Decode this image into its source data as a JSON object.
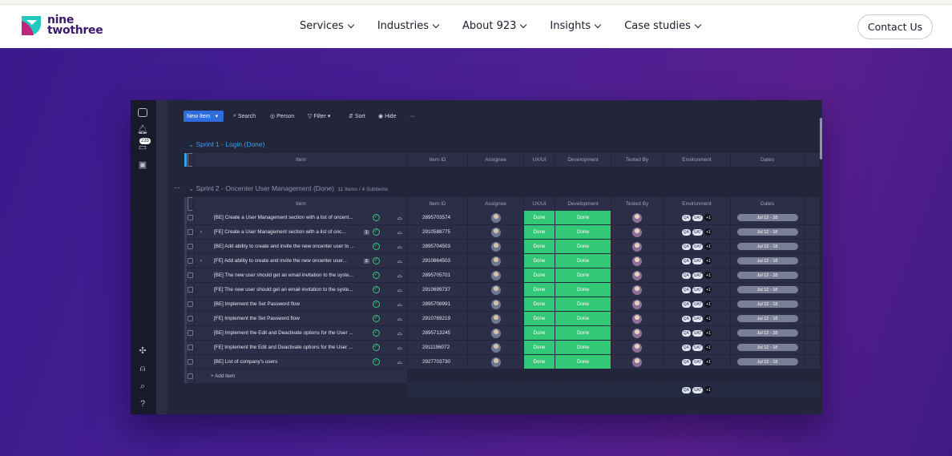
{
  "brand": {
    "line1": "nine",
    "line2": "twothree",
    "primary": "#3a1a6e",
    "accent": "#21c8c0",
    "magenta": "#c0267a"
  },
  "nav": {
    "items": [
      {
        "label": "Services"
      },
      {
        "label": "Industries"
      },
      {
        "label": "About 923"
      },
      {
        "label": "Insights"
      },
      {
        "label": "Case studies"
      }
    ],
    "cta": "Contact Us"
  },
  "board": {
    "toolbar": {
      "new_item": "New Item",
      "search": "Search",
      "person": "Person",
      "filter": "Filter",
      "sort": "Sort",
      "hide": "Hide",
      "more": "···"
    },
    "inbox_badge": "235",
    "columns": [
      "Item",
      "Item ID",
      "Assignee",
      "UX/UI",
      "Development",
      "Tested By",
      "Environment",
      "Dates"
    ],
    "group1": {
      "title": "Sprint 1 - Login (Done)"
    },
    "group2": {
      "title": "Sprint 2 - Oncenter User Management (Done)",
      "meta": "11 Items / 4 Subitems",
      "add_item": "+ Add Item"
    },
    "rows": [
      {
        "item": "[BE] Create a User Management section with a list of oncent...",
        "id": "2895703574",
        "ux": "Done",
        "dev": "Done",
        "sub": "",
        "expand": false
      },
      {
        "item": "[FE] Create a User Management section with a list of onc...",
        "id": "2910588775",
        "ux": "Done",
        "dev": "Done",
        "sub": "1",
        "expand": true
      },
      {
        "item": "[BE] Add ability to create and invite the new oncenter user to ...",
        "id": "2895704503",
        "ux": "Done",
        "dev": "Done",
        "sub": "",
        "expand": false
      },
      {
        "item": "[FE] Add ability to create and invite the new oncenter user...",
        "id": "2910664503",
        "ux": "Done",
        "dev": "Done",
        "sub": "3",
        "expand": true
      },
      {
        "item": "[BE] The new user should get an email invitation to the syste...",
        "id": "2895705701",
        "ux": "Done",
        "dev": "Done",
        "sub": "",
        "expand": false
      },
      {
        "item": "[FE] The new user should get an email invitation to the syste...",
        "id": "2910699737",
        "ux": "Done",
        "dev": "Done",
        "sub": "",
        "expand": false
      },
      {
        "item": "[BE] Implement the Set Password flow",
        "id": "2895708991",
        "ux": "Done",
        "dev": "Done",
        "sub": "",
        "expand": false
      },
      {
        "item": "[FE] Implement the Set Password flow",
        "id": "2910769219",
        "ux": "Done",
        "dev": "Done",
        "sub": "",
        "expand": false
      },
      {
        "item": "[BE] Implement the Edit and Deactivate options for the User ...",
        "id": "2895713245",
        "ux": "Done",
        "dev": "Done",
        "sub": "",
        "expand": false
      },
      {
        "item": "[FE] Implement the Edit and Deactivate options for the User ...",
        "id": "2911196072",
        "ux": "Done",
        "dev": "Done",
        "sub": "",
        "expand": false
      },
      {
        "item": "[BE] List of company's users",
        "id": "2927703730",
        "ux": "Done",
        "dev": "Done",
        "sub": "",
        "expand": false
      }
    ],
    "env": [
      "QA",
      "UAT",
      "+1"
    ],
    "dates": "Jul 12 - 18"
  }
}
